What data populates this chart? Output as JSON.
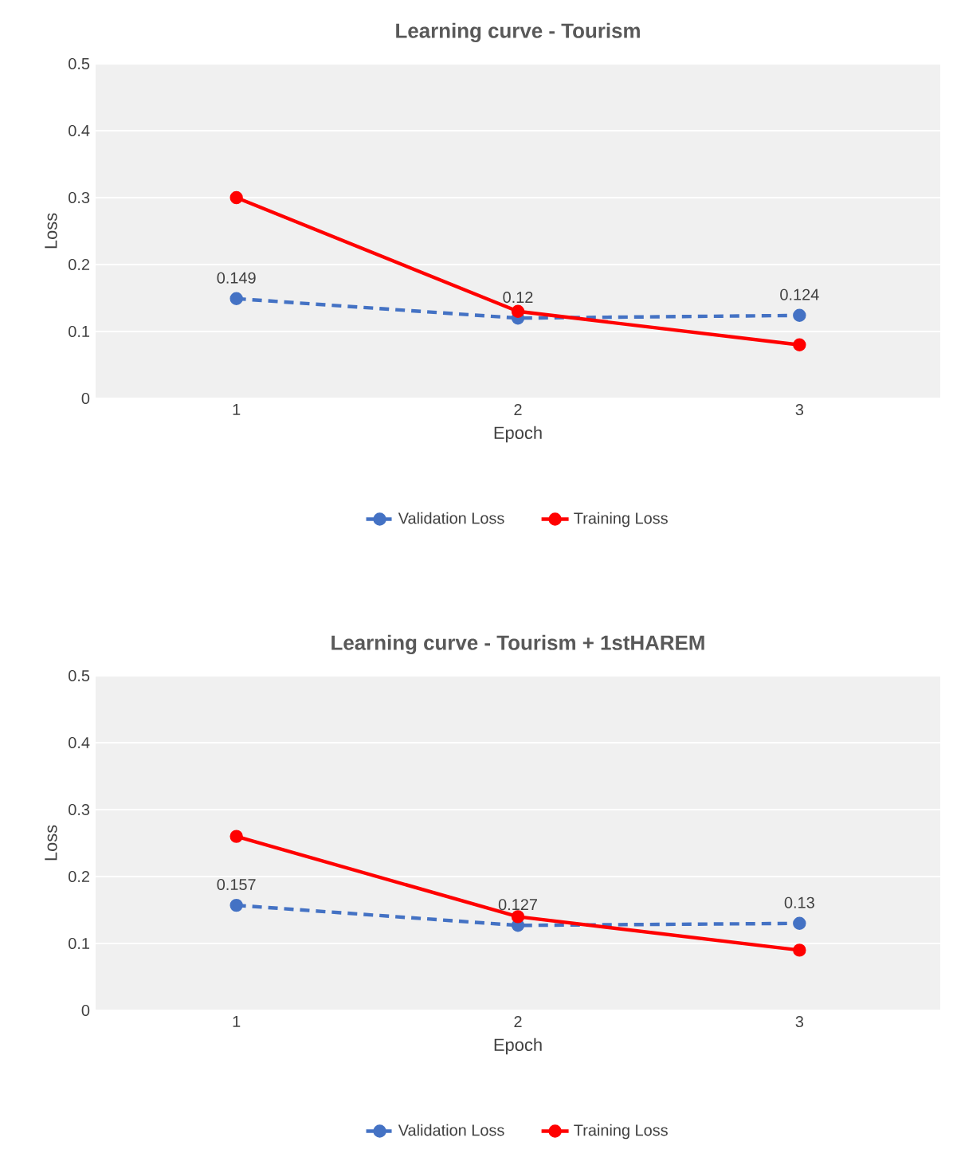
{
  "chart_data": [
    {
      "type": "line",
      "title": "Learning curve - Tourism",
      "xlabel": "Epoch",
      "ylabel": "Loss",
      "categories": [
        "1",
        "2",
        "3"
      ],
      "ylim": [
        0,
        0.5
      ],
      "yticks": [
        0,
        0.1,
        0.2,
        0.3,
        0.4,
        0.5
      ],
      "grid": "y",
      "legend": "bottom",
      "marker": "circle",
      "series": [
        {
          "name": "Validation Loss",
          "color": "#4472c4",
          "line_style": "dashed",
          "values": [
            0.149,
            0.12,
            0.124
          ],
          "value_labels": [
            "0.149",
            "0.12",
            "0.124"
          ]
        },
        {
          "name": "Training Loss",
          "color": "#ff0000",
          "line_style": "solid",
          "values": [
            0.3,
            0.13,
            0.08
          ]
        }
      ]
    },
    {
      "type": "line",
      "title": "Learning curve - Tourism + 1stHAREM",
      "xlabel": "Epoch",
      "ylabel": "Loss",
      "categories": [
        "1",
        "2",
        "3"
      ],
      "ylim": [
        0,
        0.5
      ],
      "yticks": [
        0,
        0.1,
        0.2,
        0.3,
        0.4,
        0.5
      ],
      "grid": "y",
      "legend": "bottom",
      "marker": "circle",
      "series": [
        {
          "name": "Validation Loss",
          "color": "#4472c4",
          "line_style": "dashed",
          "values": [
            0.157,
            0.127,
            0.13
          ],
          "value_labels": [
            "0.157",
            "0.127",
            "0.13"
          ]
        },
        {
          "name": "Training Loss",
          "color": "#ff0000",
          "line_style": "solid",
          "values": [
            0.26,
            0.14,
            0.09
          ]
        }
      ]
    }
  ]
}
